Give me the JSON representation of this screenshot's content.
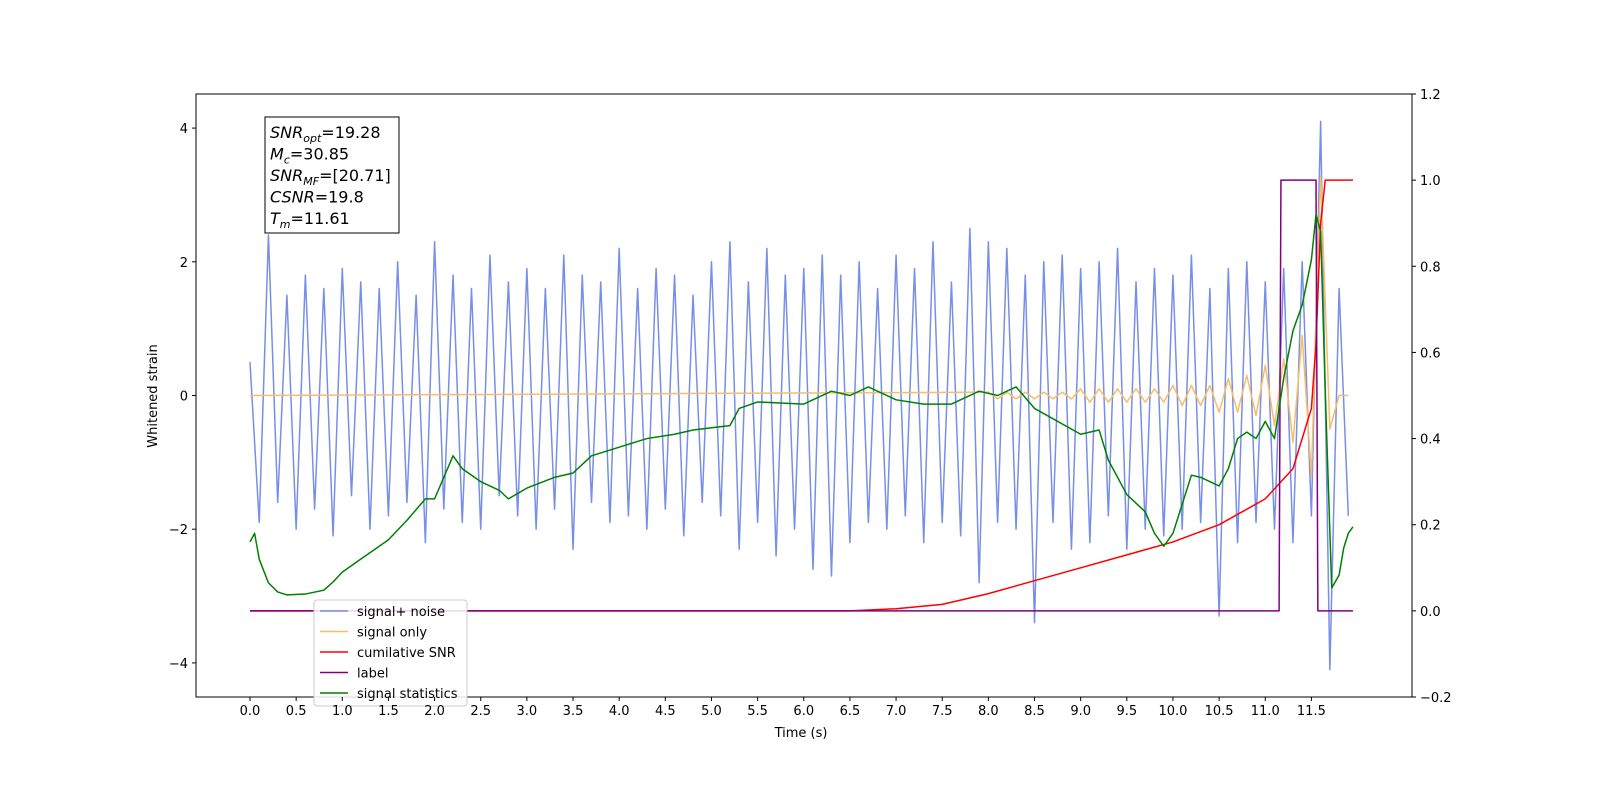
{
  "chart_data": {
    "type": "line",
    "xlabel": "Time (s)",
    "ylabel": "Whitened strain",
    "xlim": [
      -0.585,
      12.59
    ],
    "ylim": [
      -4.51,
      4.51
    ],
    "y2lim": [
      -0.2,
      1.2
    ],
    "xticks": [
      {
        "value": 0,
        "label": "0.0"
      },
      0.5,
      {
        "value": 1,
        "label": "1.0"
      },
      1.5,
      {
        "value": 2,
        "label": "2.0"
      },
      2.5,
      {
        "value": 3,
        "label": "3.0"
      },
      3.5,
      {
        "value": 4,
        "label": "4.0"
      },
      4.5,
      {
        "value": 5,
        "label": "5.0"
      },
      5.5,
      {
        "value": 6,
        "label": "6.0"
      },
      6.5,
      {
        "value": 7,
        "label": "7.0"
      },
      7.5,
      {
        "value": 8,
        "label": "8.0"
      },
      8.5,
      {
        "value": 9,
        "label": "9.0"
      },
      9.5,
      {
        "value": 10,
        "label": "10.0"
      },
      10.5,
      {
        "value": 11,
        "label": "11.0"
      },
      11.5
    ],
    "yticks": [
      {
        "value": -4,
        "label": "−4"
      },
      {
        "value": -2,
        "label": "−2"
      },
      0,
      2,
      4
    ],
    "y2ticks": [
      {
        "value": -0.2,
        "label": "−0.2"
      },
      {
        "value": 0,
        "label": "0.0"
      },
      0.2,
      0.4,
      0.6,
      0.8,
      {
        "value": 1,
        "label": "1.0"
      },
      1.2
    ],
    "annotations": [
      {
        "symbol": "SNR",
        "subscript": "opt",
        "text": "=19.28"
      },
      {
        "symbol": "M",
        "subscript": "c",
        "text": "=30.85"
      },
      {
        "symbol": "SNR",
        "subscript": "MF",
        "text": "=[20.71]"
      },
      {
        "symbol": "CSNR",
        "text": "=19.8"
      },
      {
        "symbol": "T",
        "subscript": "m",
        "text": "=11.61"
      }
    ],
    "series": [
      {
        "name": "signal+ noise",
        "color": "#778fe8",
        "x": [
          0.0,
          0.1,
          0.2,
          0.3,
          0.4,
          0.5,
          0.6,
          0.7,
          0.8,
          0.9,
          1.0,
          1.1,
          1.2,
          1.3,
          1.4,
          1.5,
          1.6,
          1.7,
          1.8,
          1.9,
          2.0,
          2.1,
          2.2,
          2.3,
          2.4,
          2.5,
          2.6,
          2.7,
          2.8,
          2.9,
          3.0,
          3.1,
          3.2,
          3.3,
          3.4,
          3.5,
          3.6,
          3.7,
          3.8,
          3.9,
          4.0,
          4.1,
          4.2,
          4.3,
          4.4,
          4.5,
          4.6,
          4.7,
          4.8,
          4.9,
          5.0,
          5.1,
          5.2,
          5.3,
          5.4,
          5.5,
          5.6,
          5.7,
          5.8,
          5.9,
          6.0,
          6.1,
          6.2,
          6.3,
          6.4,
          6.5,
          6.6,
          6.7,
          6.8,
          6.9,
          7.0,
          7.1,
          7.2,
          7.3,
          7.4,
          7.5,
          7.6,
          7.7,
          7.8,
          7.9,
          8.0,
          8.1,
          8.2,
          8.3,
          8.4,
          8.5,
          8.6,
          8.7,
          8.8,
          8.9,
          9.0,
          9.1,
          9.2,
          9.3,
          9.4,
          9.5,
          9.6,
          9.7,
          9.8,
          9.9,
          10.0,
          10.1,
          10.2,
          10.3,
          10.4,
          10.5,
          10.6,
          10.7,
          10.8,
          10.9,
          11.0,
          11.1,
          11.2,
          11.3,
          11.4,
          11.5,
          11.6,
          11.7,
          11.8,
          11.9
        ],
        "values": [
          0.5,
          -1.9,
          2.4,
          -1.6,
          1.5,
          -2.0,
          1.8,
          -1.7,
          1.6,
          -2.1,
          1.9,
          -1.5,
          1.7,
          -2.0,
          1.6,
          -1.8,
          2.0,
          -1.6,
          1.5,
          -2.2,
          2.3,
          -1.7,
          1.8,
          -1.9,
          1.6,
          -2.0,
          2.1,
          -1.5,
          1.7,
          -1.8,
          1.9,
          -2.0,
          1.6,
          -1.7,
          2.1,
          -2.3,
          1.8,
          -1.6,
          1.7,
          -1.9,
          2.2,
          -1.8,
          1.6,
          -2.0,
          1.9,
          -1.7,
          1.8,
          -2.1,
          1.5,
          -1.6,
          2.0,
          -1.8,
          2.3,
          -2.3,
          1.7,
          -1.9,
          2.2,
          -2.4,
          1.8,
          -2.0,
          1.9,
          -2.6,
          2.1,
          -2.7,
          1.8,
          -2.2,
          2.0,
          -1.9,
          1.6,
          -2.0,
          2.1,
          -1.8,
          1.9,
          -2.2,
          2.3,
          -1.9,
          1.7,
          -2.1,
          2.5,
          -2.8,
          2.3,
          -1.9,
          2.2,
          -2.0,
          1.8,
          -3.4,
          2.0,
          -1.9,
          2.1,
          -2.3,
          1.9,
          -2.2,
          2.0,
          -1.8,
          2.2,
          -2.3,
          1.7,
          -2.0,
          1.9,
          -2.1,
          1.8,
          -2.0,
          2.1,
          -1.9,
          1.6,
          -3.3,
          1.9,
          -2.2,
          2.0,
          -1.9,
          1.7,
          -2.0,
          1.9,
          -2.2,
          2.0,
          -1.8,
          4.1,
          -4.1,
          1.6,
          -1.8
        ]
      },
      {
        "name": "signal only",
        "color": "#f7be6a",
        "x": [
          0.0,
          8.0,
          8.1,
          8.2,
          8.3,
          8.4,
          8.5,
          8.6,
          8.7,
          8.8,
          8.9,
          9.0,
          9.1,
          9.2,
          9.3,
          9.4,
          9.5,
          9.6,
          9.7,
          9.8,
          9.9,
          10.0,
          10.1,
          10.2,
          10.3,
          10.4,
          10.5,
          10.6,
          10.7,
          10.8,
          10.9,
          11.0,
          11.1,
          11.2,
          11.3,
          11.4,
          11.5,
          11.6,
          11.7,
          11.8,
          11.9
        ],
        "values": [
          0,
          0.05,
          -0.05,
          0.05,
          -0.05,
          0.05,
          -0.05,
          0.05,
          -0.05,
          0.05,
          -0.05,
          0.1,
          -0.1,
          0.1,
          -0.1,
          0.1,
          -0.1,
          0.1,
          -0.1,
          0.1,
          -0.1,
          0.15,
          -0.15,
          0.15,
          -0.15,
          0.15,
          -0.25,
          0.25,
          -0.25,
          0.3,
          -0.3,
          0.45,
          -0.45,
          0.55,
          -0.7,
          0.9,
          -1.2,
          3.3,
          -0.5,
          0,
          0
        ]
      },
      {
        "name": "cumilative SNR",
        "color": "#ff0000",
        "axis": "y2",
        "x": [
          0.0,
          6.5,
          7.0,
          7.5,
          8.0,
          8.5,
          9.0,
          9.5,
          10.0,
          10.5,
          11.0,
          11.3,
          11.5,
          11.55,
          11.6,
          11.65,
          11.95
        ],
        "values": [
          0,
          0,
          0.005,
          0.015,
          0.04,
          0.07,
          0.1,
          0.13,
          0.16,
          0.2,
          0.26,
          0.33,
          0.47,
          0.62,
          0.9,
          1.0,
          1.0
        ]
      },
      {
        "name": "label",
        "color": "#800080",
        "axis": "y2",
        "x": [
          0.0,
          11.15,
          11.17,
          11.55,
          11.57,
          11.95
        ],
        "values": [
          0,
          0,
          1,
          1,
          0,
          0
        ]
      },
      {
        "name": "signal statistics",
        "color": "#008000",
        "axis": "y2",
        "x": [
          0.0,
          0.05,
          0.1,
          0.2,
          0.3,
          0.4,
          0.6,
          0.8,
          0.9,
          1.0,
          1.2,
          1.4,
          1.5,
          1.7,
          1.9,
          2.0,
          2.2,
          2.3,
          2.5,
          2.7,
          2.8,
          3.0,
          3.3,
          3.5,
          3.7,
          4.0,
          4.3,
          4.6,
          4.8,
          5.0,
          5.2,
          5.3,
          5.5,
          6.0,
          6.3,
          6.5,
          6.7,
          7.0,
          7.3,
          7.6,
          7.9,
          8.1,
          8.3,
          8.5,
          9.0,
          9.2,
          9.3,
          9.5,
          9.7,
          9.8,
          9.9,
          10.0,
          10.2,
          10.3,
          10.5,
          10.6,
          10.7,
          10.8,
          10.9,
          11.0,
          11.1,
          11.2,
          11.3,
          11.4,
          11.5,
          11.55,
          11.6,
          11.65,
          11.72,
          11.8,
          11.85,
          11.9,
          11.95
        ],
        "values": [
          0.16,
          0.18,
          0.12,
          0.065,
          0.044,
          0.037,
          0.039,
          0.048,
          0.067,
          0.09,
          0.12,
          0.15,
          0.165,
          0.21,
          0.26,
          0.26,
          0.36,
          0.33,
          0.3,
          0.28,
          0.26,
          0.285,
          0.31,
          0.32,
          0.36,
          0.38,
          0.4,
          0.41,
          0.42,
          0.425,
          0.43,
          0.47,
          0.485,
          0.48,
          0.51,
          0.5,
          0.52,
          0.49,
          0.48,
          0.48,
          0.51,
          0.5,
          0.52,
          0.47,
          0.41,
          0.42,
          0.35,
          0.27,
          0.23,
          0.18,
          0.15,
          0.18,
          0.315,
          0.31,
          0.29,
          0.33,
          0.4,
          0.415,
          0.4,
          0.44,
          0.4,
          0.54,
          0.65,
          0.71,
          0.815,
          0.92,
          0.88,
          0.51,
          0.053,
          0.083,
          0.146,
          0.18,
          0.195
        ]
      }
    ]
  }
}
